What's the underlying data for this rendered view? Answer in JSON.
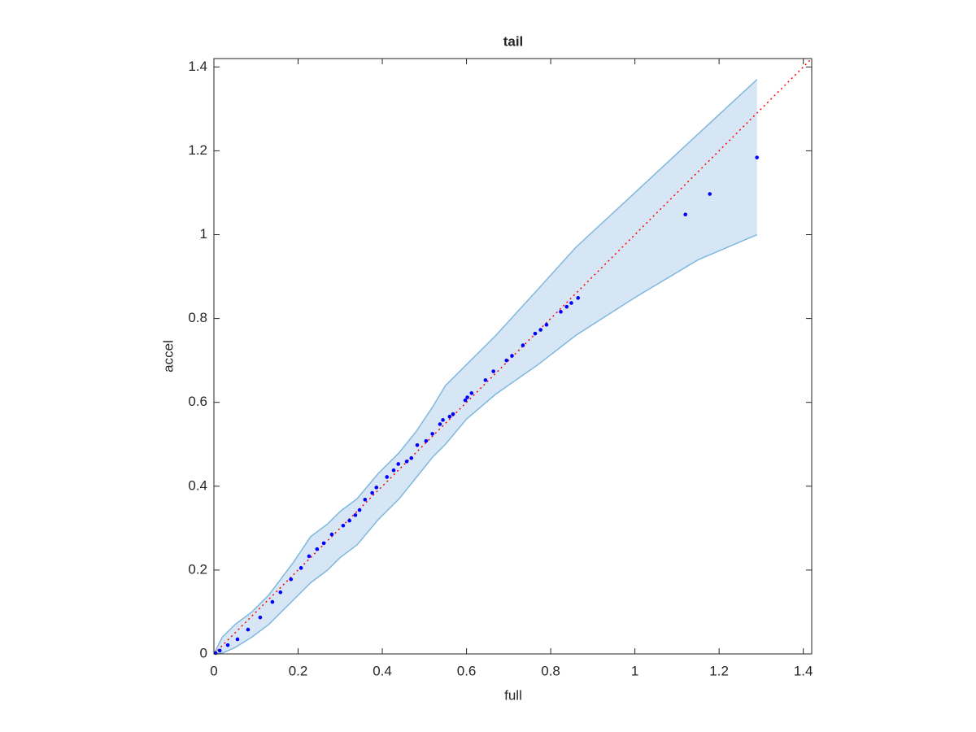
{
  "chart_data": {
    "type": "scatter",
    "title": "tail",
    "x_label": "full",
    "y_label": "accel",
    "x": [
      1.29,
      1.178,
      1.12,
      0.865,
      0.849,
      0.838,
      0.824,
      0.79,
      0.776,
      0.763,
      0.734,
      0.708,
      0.695,
      0.664,
      0.645,
      0.612,
      0.602,
      0.597,
      0.568,
      0.56,
      0.544,
      0.537,
      0.519,
      0.504,
      0.483,
      0.469,
      0.458,
      0.438,
      0.427,
      0.411,
      0.386,
      0.376,
      0.359,
      0.346,
      0.336,
      0.322,
      0.307,
      0.28,
      0.261,
      0.245,
      0.226,
      0.207,
      0.183,
      0.158,
      0.139,
      0.11,
      0.081,
      0.056,
      0.033,
      0.014,
      0.004
    ],
    "values": [
      1.184,
      1.097,
      1.048,
      0.849,
      0.837,
      0.828,
      0.816,
      0.785,
      0.773,
      0.764,
      0.736,
      0.711,
      0.7,
      0.674,
      0.653,
      0.622,
      0.612,
      0.605,
      0.572,
      0.566,
      0.558,
      0.548,
      0.525,
      0.508,
      0.498,
      0.467,
      0.459,
      0.453,
      0.438,
      0.422,
      0.397,
      0.384,
      0.368,
      0.343,
      0.331,
      0.318,
      0.306,
      0.285,
      0.264,
      0.25,
      0.233,
      0.205,
      0.178,
      0.147,
      0.124,
      0.087,
      0.058,
      0.035,
      0.021,
      0.008,
      0.002
    ],
    "color": "#0000ff",
    "band": {
      "color": "#7fb8de",
      "fill": "#d6e6f4",
      "x": [
        0,
        0.02,
        0.05,
        0.09,
        0.13,
        0.16,
        0.19,
        0.23,
        0.27,
        0.3,
        0.34,
        0.39,
        0.44,
        0.48,
        0.52,
        0.55,
        0.6,
        0.67,
        0.77,
        0.86,
        1.0,
        1.15,
        1.29
      ],
      "upper": [
        0,
        0.04,
        0.07,
        0.1,
        0.14,
        0.18,
        0.22,
        0.28,
        0.31,
        0.34,
        0.37,
        0.43,
        0.48,
        0.53,
        0.59,
        0.64,
        0.69,
        0.76,
        0.87,
        0.97,
        1.1,
        1.24,
        1.37
      ],
      "lower": [
        0,
        0.002,
        0.015,
        0.04,
        0.07,
        0.1,
        0.13,
        0.17,
        0.2,
        0.23,
        0.26,
        0.32,
        0.37,
        0.42,
        0.47,
        0.5,
        0.56,
        0.62,
        0.69,
        0.76,
        0.85,
        0.94,
        1.0
      ]
    },
    "reference_line": {
      "color": "#ff0000",
      "x": [
        0,
        1.42
      ],
      "y": [
        0,
        1.42
      ]
    },
    "xlim": [
      0,
      1.42
    ],
    "ylim": [
      0,
      1.42
    ],
    "xticks": [
      0,
      0.2,
      0.4,
      0.6,
      0.8,
      1,
      1.2,
      1.4
    ],
    "yticks": [
      0,
      0.2,
      0.4,
      0.6,
      0.8,
      1,
      1.2,
      1.4
    ]
  }
}
